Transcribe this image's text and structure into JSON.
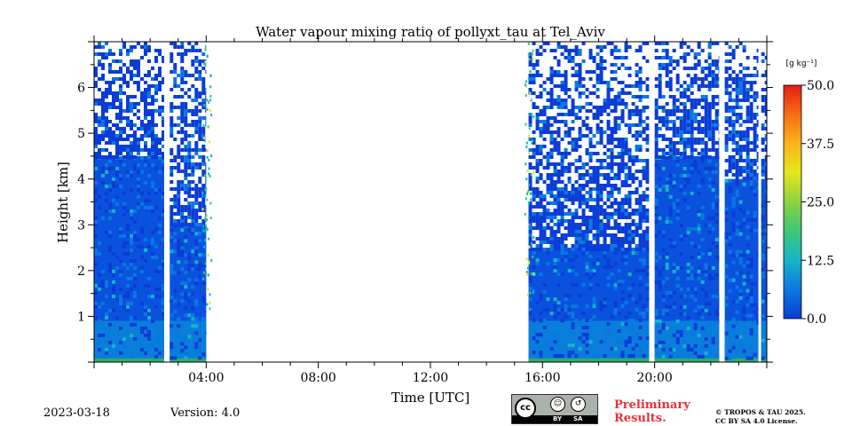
{
  "chart_data": {
    "type": "heatmap",
    "title": "Water vapour mixing ratio of pollyxt_tau at Tel_Aviv",
    "xlabel": "Time [UTC]",
    "ylabel": "Height [km]",
    "xlim_hours": [
      0,
      24
    ],
    "ylim_km": [
      0,
      7
    ],
    "x_ticks": [
      {
        "hour": 4,
        "label": "04:00"
      },
      {
        "hour": 8,
        "label": "08:00"
      },
      {
        "hour": 12,
        "label": "12:00"
      },
      {
        "hour": 16,
        "label": "16:00"
      },
      {
        "hour": 20,
        "label": "20:00"
      }
    ],
    "y_ticks": [
      {
        "km": 1,
        "label": "1"
      },
      {
        "km": 2,
        "label": "2"
      },
      {
        "km": 3,
        "label": "3"
      },
      {
        "km": 4,
        "label": "4"
      },
      {
        "km": 5,
        "label": "5"
      },
      {
        "km": 6,
        "label": "6"
      }
    ],
    "colorbar": {
      "unit_label": "[g kg⁻¹]",
      "range": [
        0,
        50
      ],
      "ticks": [
        "0.0",
        "12.5",
        "25.0",
        "37.5",
        "50.0"
      ],
      "tick_values": [
        0,
        12.5,
        25,
        37.5,
        50
      ],
      "colormap": [
        "#0a3cd6",
        "#0a78e0",
        "#17b4c8",
        "#3cc878",
        "#8cd23c",
        "#e6e61e",
        "#fab419",
        "#f56e14",
        "#e61e14"
      ]
    },
    "data_segments": [
      {
        "start_hour": 0.0,
        "end_hour": 2.5,
        "top_km": 7.0,
        "dense_top_km": 4.5
      },
      {
        "start_hour": 2.7,
        "end_hour": 4.0,
        "top_km": 7.0,
        "dense_top_km": 3.0
      },
      {
        "start_hour": 15.5,
        "end_hour": 19.8,
        "top_km": 7.0,
        "dense_top_km": 2.5
      },
      {
        "start_hour": 20.0,
        "end_hour": 22.3,
        "top_km": 7.0,
        "dense_top_km": 4.5
      },
      {
        "start_hour": 22.5,
        "end_hour": 23.7,
        "top_km": 7.0,
        "dense_top_km": 4.0
      },
      {
        "start_hour": 23.8,
        "end_hour": 24.0,
        "top_km": 7.0,
        "dense_top_km": 4.0
      }
    ]
  },
  "footer": {
    "date": "2023-03-18",
    "version": "Version: 4.0",
    "preliminary_line1": "Preliminary",
    "preliminary_line2": "Results.",
    "license_line1": "© TROPOS & TAU 2025.",
    "license_line2": "CC BY SA 4.0 License.",
    "badge_cc": "cc",
    "badge_by": "BY",
    "badge_sa": "SA",
    "badge_icons": [
      "cc-icon",
      "by-person-icon",
      "sa-share-alike-icon"
    ]
  }
}
